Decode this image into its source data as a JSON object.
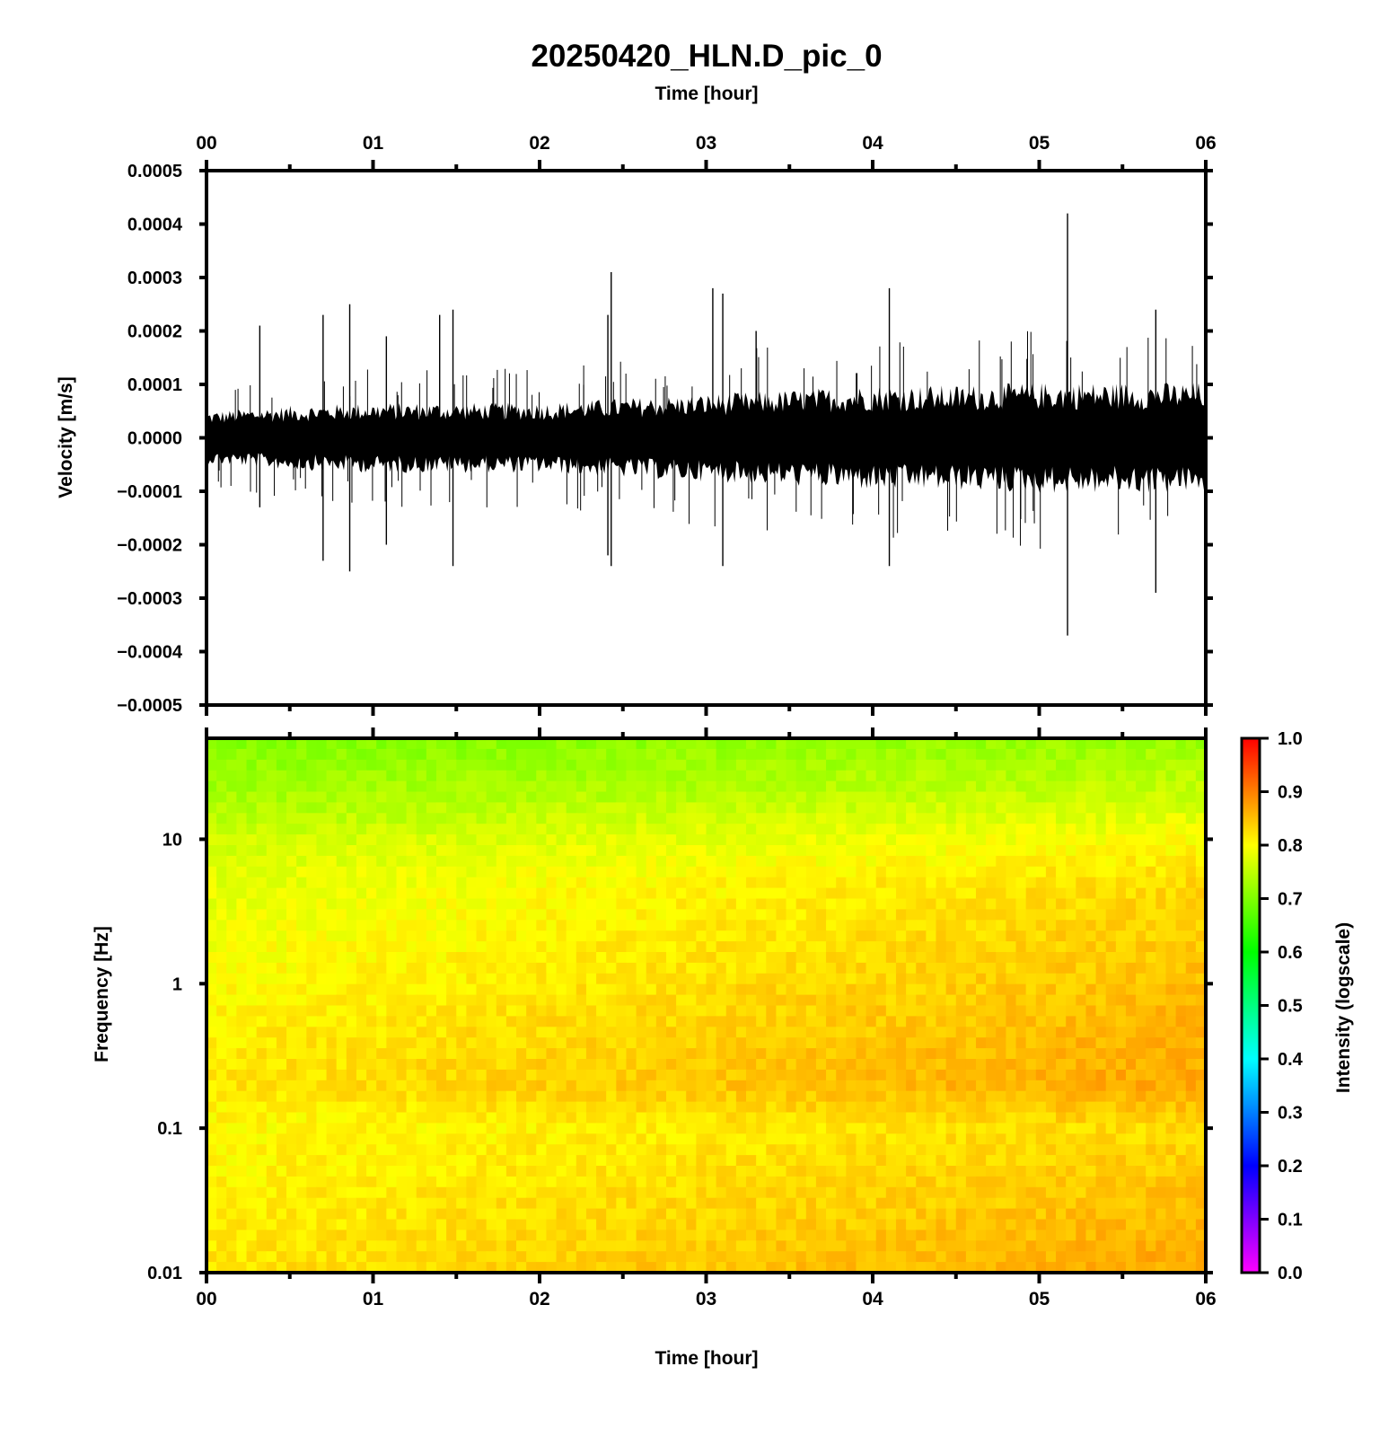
{
  "title": "20250420_HLN.D_pic_0",
  "chart_data": [
    {
      "type": "line",
      "panel": "waveform",
      "xlabel": "Time [hour]",
      "ylabel": "Velocity [m/s]",
      "xlim": [
        0,
        6
      ],
      "ylim": [
        -0.0005,
        0.0005
      ],
      "x_tick_labels": [
        "00",
        "01",
        "02",
        "03",
        "04",
        "05",
        "06"
      ],
      "y_ticks": [
        0.0005,
        0.0004,
        0.0003,
        0.0002,
        0.0001,
        0.0,
        -0.0001,
        -0.0002,
        -0.0003,
        -0.0004,
        -0.0005
      ],
      "y_tick_labels": [
        "0.0005",
        "0.0004",
        "0.0003",
        "0.0002",
        "0.0001",
        "0.0000",
        "−0.0001",
        "−0.0002",
        "−0.0003",
        "−0.0004",
        "−0.0005"
      ],
      "line_color": "#000000",
      "noise_envelope": {
        "x": [
          0,
          0.5,
          1,
          1.5,
          2,
          2.5,
          3,
          3.5,
          4,
          4.5,
          5,
          5.5,
          6
        ],
        "amplitude": [
          4.5e-05,
          5.5e-05,
          6e-05,
          6e-05,
          6e-05,
          6.8e-05,
          7.5e-05,
          8.2e-05,
          9e-05,
          9e-05,
          9.5e-05,
          9.5e-05,
          9.5e-05
        ]
      },
      "spikes": [
        {
          "x": 0.32,
          "y": 0.00021
        },
        {
          "x": 0.32,
          "y": -0.00013
        },
        {
          "x": 0.7,
          "y": 0.00023
        },
        {
          "x": 0.7,
          "y": -0.00023
        },
        {
          "x": 0.86,
          "y": 0.00025
        },
        {
          "x": 0.86,
          "y": -0.00025
        },
        {
          "x": 1.08,
          "y": 0.00019
        },
        {
          "x": 1.08,
          "y": -0.0002
        },
        {
          "x": 1.4,
          "y": 0.00023
        },
        {
          "x": 1.48,
          "y": 0.00024
        },
        {
          "x": 1.48,
          "y": -0.00024
        },
        {
          "x": 2.41,
          "y": 0.00023
        },
        {
          "x": 2.41,
          "y": -0.00022
        },
        {
          "x": 2.43,
          "y": 0.00031
        },
        {
          "x": 2.43,
          "y": -0.00024
        },
        {
          "x": 3.04,
          "y": 0.00028
        },
        {
          "x": 3.1,
          "y": 0.00027
        },
        {
          "x": 3.1,
          "y": -0.00024
        },
        {
          "x": 3.3,
          "y": 0.0002
        },
        {
          "x": 4.1,
          "y": 0.00028
        },
        {
          "x": 4.1,
          "y": -0.00024
        },
        {
          "x": 5.17,
          "y": 0.00042
        },
        {
          "x": 5.17,
          "y": -0.00037
        },
        {
          "x": 5.7,
          "y": 0.00024
        },
        {
          "x": 5.7,
          "y": -0.00029
        }
      ]
    },
    {
      "type": "heatmap",
      "panel": "spectrogram",
      "xlabel": "Time [hour]",
      "ylabel": "Frequency [Hz]",
      "xlim": [
        0,
        6
      ],
      "ylim": [
        0.01,
        50
      ],
      "y_scale": "log",
      "x_tick_labels": [
        "00",
        "01",
        "02",
        "03",
        "04",
        "05",
        "06"
      ],
      "y_ticks": [
        10,
        1,
        0.1,
        0.01
      ],
      "y_tick_labels": [
        "10",
        "1",
        "0.1",
        "0.01"
      ],
      "colorbar": {
        "label": "Intensity (logscale)",
        "range": [
          0.0,
          1.0
        ],
        "tick_labels": [
          "1.0",
          "0.9",
          "0.8",
          "0.7",
          "0.6",
          "0.5",
          "0.4",
          "0.3",
          "0.2",
          "0.1",
          "0.0"
        ],
        "colors": [
          "#ff00ff",
          "#0000ff",
          "#00ffff",
          "#00ff00",
          "#ffff00",
          "#ff0000"
        ]
      },
      "intensity_profile": {
        "frequency": [
          50,
          20,
          10,
          5,
          1,
          0.5,
          0.2,
          0.1,
          0.01
        ],
        "intensity_at_start": [
          0.7,
          0.73,
          0.76,
          0.78,
          0.8,
          0.81,
          0.82,
          0.8,
          0.82
        ],
        "intensity_at_end": [
          0.72,
          0.76,
          0.8,
          0.83,
          0.85,
          0.86,
          0.87,
          0.83,
          0.87
        ]
      }
    }
  ]
}
